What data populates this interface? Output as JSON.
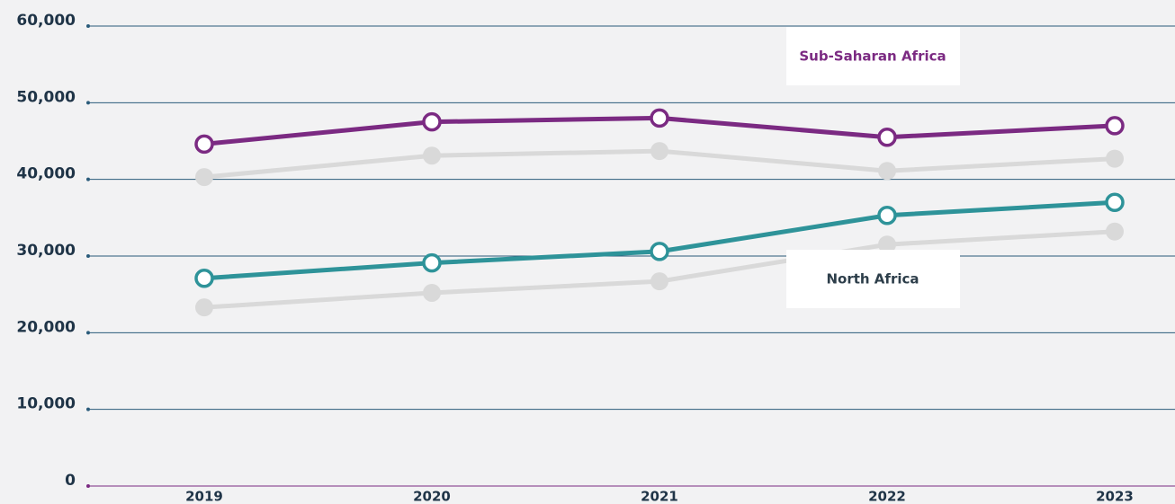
{
  "chart_data": {
    "type": "line",
    "categories": [
      "2019",
      "2020",
      "2021",
      "2022",
      "2023"
    ],
    "series": [
      {
        "color": "#d9d9d9",
        "values": [
          40300,
          43100,
          43700,
          41100,
          42700
        ]
      },
      {
        "color": "#d9d9d9",
        "values": [
          23300,
          25200,
          26700,
          31500,
          33200
        ]
      },
      {
        "name": "Sub-Saharan Africa",
        "color": "#7b2a82",
        "values": [
          44600,
          47500,
          48000,
          45500,
          47000
        ]
      },
      {
        "name": "North Africa",
        "color": "#2e9399",
        "values": [
          27100,
          29100,
          30600,
          35300,
          37000
        ]
      }
    ],
    "ylim": [
      0,
      60000
    ],
    "yticks": [
      0,
      {
        "value": 10000,
        "label": "10,000"
      },
      {
        "value": 20000,
        "label": "20,000"
      },
      {
        "value": 30000,
        "label": "30,000"
      },
      {
        "value": 40000,
        "label": "40,000"
      },
      {
        "value": 50000,
        "label": "50,000"
      },
      {
        "value": 60000,
        "label": "60,000"
      }
    ],
    "grid": true
  }
}
